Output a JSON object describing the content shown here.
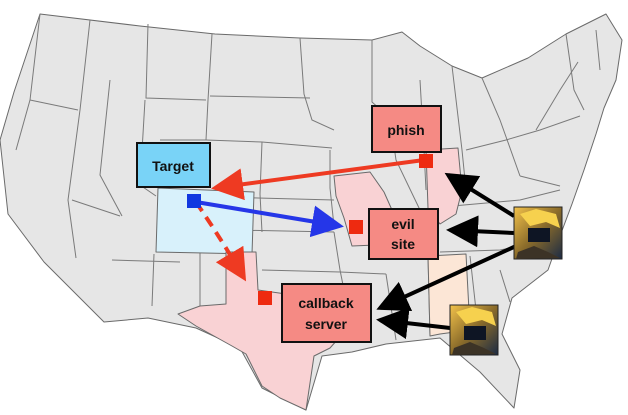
{
  "nodes": {
    "target": {
      "label": "Target"
    },
    "phish": {
      "label": "phish"
    },
    "evil_site": {
      "lines": [
        "evil",
        "site"
      ]
    },
    "callback_server": {
      "lines": [
        "callback",
        "server"
      ]
    }
  },
  "attackers": [
    {
      "name": "attacker-avatar-top"
    },
    {
      "name": "attacker-avatar-bottom"
    }
  ],
  "colors": {
    "map_fill": "#e6e6e6",
    "state_border": "#6a6a6a",
    "target_fill": "#79d3f7",
    "target_state_fill": "#d8f1fb",
    "attack_box_fill": "#f58a84",
    "pink_state_fill": "#f9d2d4",
    "peach_state_fill": "#fce6d6",
    "red_arrow": "#ee3a22",
    "blue_arrow": "#2536e8",
    "black_arrow": "#000000",
    "node_marker": "#ee2a10",
    "target_marker": "#1138e0"
  }
}
